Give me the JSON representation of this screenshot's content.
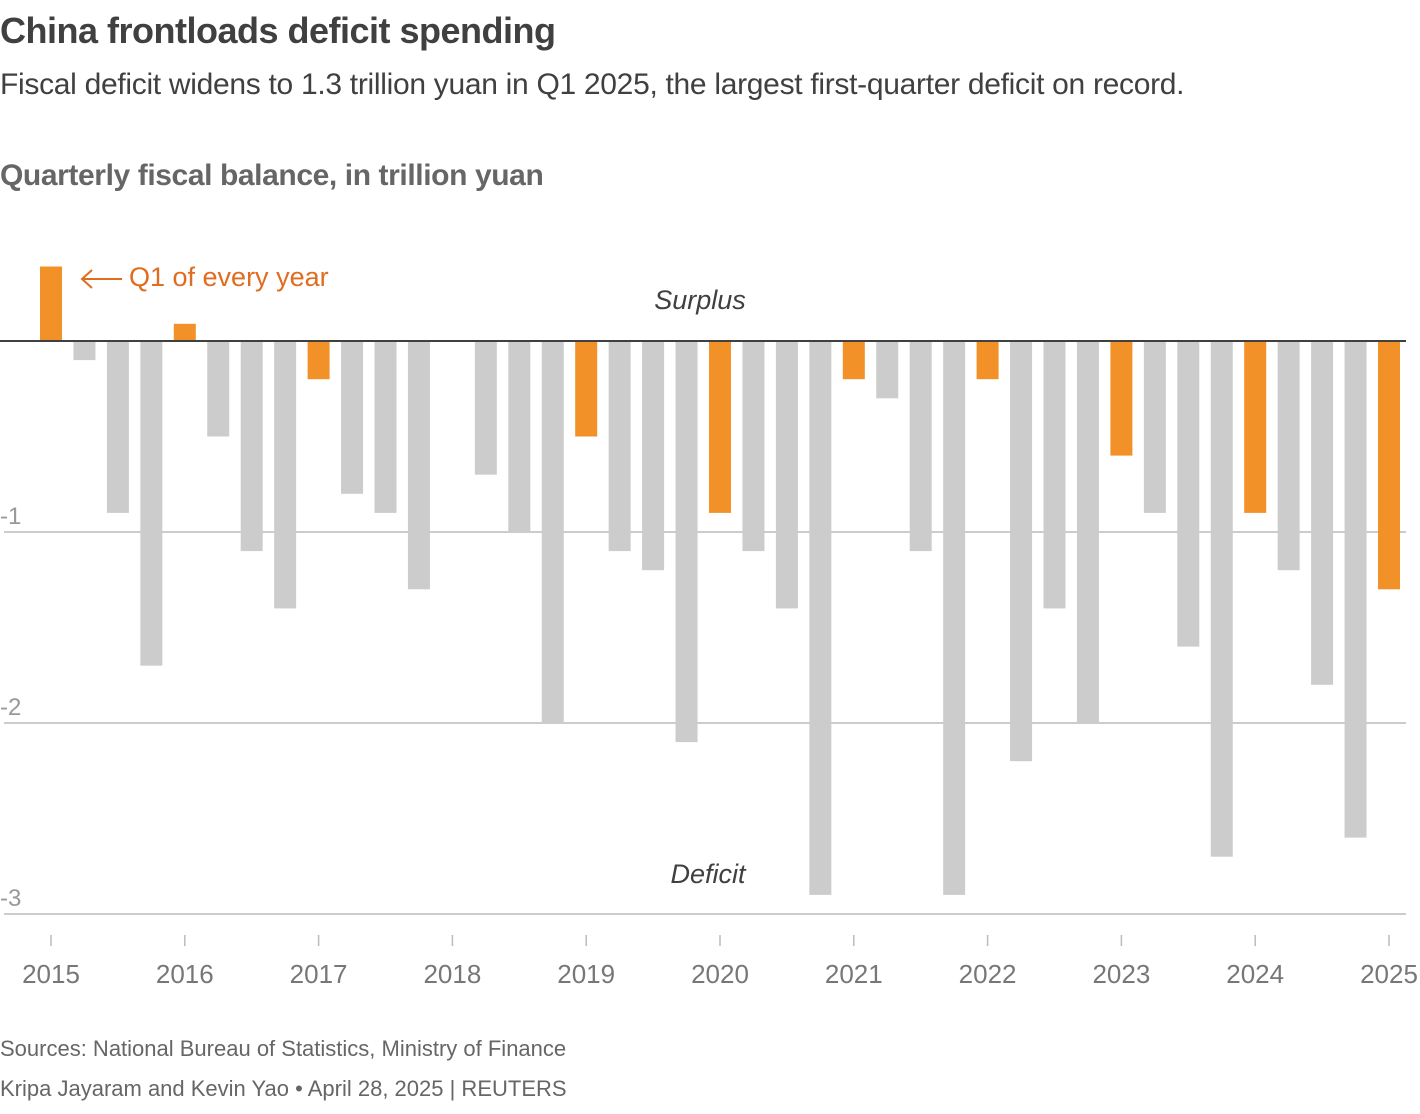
{
  "header": {
    "title": "China frontloads deficit spending",
    "subtitle": "Fiscal deficit widens to 1.3 trillion yuan in Q1 2025, the largest first-quarter deficit on record."
  },
  "footer": {
    "sources": "Sources: National Bureau of Statistics, Ministry of Finance",
    "byline": "Kripa Jayaram and Kevin Yao • April 28, 2025 | REUTERS"
  },
  "colors": {
    "q1": "#f39129",
    "other": "#cccccc",
    "annotation": "#e06c1f",
    "zero_line": "#404040",
    "grid": "#cccccc"
  },
  "chart_data": {
    "type": "bar",
    "title": "Quarterly fiscal balance, in trillion yuan",
    "xlabel": "",
    "ylabel": "",
    "ylim": [
      -3,
      0.4
    ],
    "yticks": [
      -1,
      -2,
      -3
    ],
    "ytick_labels": [
      "-1",
      "-2",
      "-3"
    ],
    "xticks": [
      "2015",
      "2016",
      "2017",
      "2018",
      "2019",
      "2020",
      "2021",
      "2022",
      "2023",
      "2024",
      "2025"
    ],
    "grid": true,
    "annotations": {
      "q1_label": "Q1 of every year",
      "surplus_label": "Surplus",
      "deficit_label": "Deficit"
    },
    "legend": "none (Q1 bars highlighted in orange, annotated top-left)",
    "series": [
      {
        "name": "Quarterly fiscal balance",
        "points": [
          {
            "year": 2015,
            "q": 1,
            "value": 0.39
          },
          {
            "year": 2015,
            "q": 2,
            "value": -0.1
          },
          {
            "year": 2015,
            "q": 3,
            "value": -0.9
          },
          {
            "year": 2015,
            "q": 4,
            "value": -1.7
          },
          {
            "year": 2016,
            "q": 1,
            "value": 0.09
          },
          {
            "year": 2016,
            "q": 2,
            "value": -0.5
          },
          {
            "year": 2016,
            "q": 3,
            "value": -1.1
          },
          {
            "year": 2016,
            "q": 4,
            "value": -1.4
          },
          {
            "year": 2017,
            "q": 1,
            "value": -0.2
          },
          {
            "year": 2017,
            "q": 2,
            "value": -0.8
          },
          {
            "year": 2017,
            "q": 3,
            "value": -0.9
          },
          {
            "year": 2017,
            "q": 4,
            "value": -1.3
          },
          {
            "year": 2018,
            "q": 1,
            "value": 0
          },
          {
            "year": 2018,
            "q": 2,
            "value": -0.7
          },
          {
            "year": 2018,
            "q": 3,
            "value": -1.0
          },
          {
            "year": 2018,
            "q": 4,
            "value": -2.0
          },
          {
            "year": 2019,
            "q": 1,
            "value": -0.5
          },
          {
            "year": 2019,
            "q": 2,
            "value": -1.1
          },
          {
            "year": 2019,
            "q": 3,
            "value": -1.2
          },
          {
            "year": 2019,
            "q": 4,
            "value": -2.1
          },
          {
            "year": 2020,
            "q": 1,
            "value": -0.9
          },
          {
            "year": 2020,
            "q": 2,
            "value": -1.1
          },
          {
            "year": 2020,
            "q": 3,
            "value": -1.4
          },
          {
            "year": 2020,
            "q": 4,
            "value": -2.9
          },
          {
            "year": 2021,
            "q": 1,
            "value": -0.2
          },
          {
            "year": 2021,
            "q": 2,
            "value": -0.3
          },
          {
            "year": 2021,
            "q": 3,
            "value": -1.1
          },
          {
            "year": 2021,
            "q": 4,
            "value": -2.9
          },
          {
            "year": 2022,
            "q": 1,
            "value": -0.2
          },
          {
            "year": 2022,
            "q": 2,
            "value": -2.2
          },
          {
            "year": 2022,
            "q": 3,
            "value": -1.4
          },
          {
            "year": 2022,
            "q": 4,
            "value": -2.0
          },
          {
            "year": 2023,
            "q": 1,
            "value": -0.6
          },
          {
            "year": 2023,
            "q": 2,
            "value": -0.9
          },
          {
            "year": 2023,
            "q": 3,
            "value": -1.6
          },
          {
            "year": 2023,
            "q": 4,
            "value": -2.7
          },
          {
            "year": 2024,
            "q": 1,
            "value": -0.9
          },
          {
            "year": 2024,
            "q": 2,
            "value": -1.2
          },
          {
            "year": 2024,
            "q": 3,
            "value": -1.8
          },
          {
            "year": 2024,
            "q": 4,
            "value": -2.6
          },
          {
            "year": 2025,
            "q": 1,
            "value": -1.3
          }
        ]
      }
    ]
  }
}
